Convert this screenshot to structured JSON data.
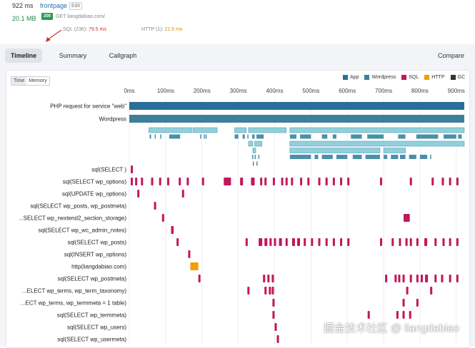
{
  "header": {
    "time": "922 ms",
    "page_link": "frontpage",
    "edit_label": "Edit",
    "memory": "20.1 MB",
    "status_badge": "200",
    "request": "GET liangdabiao.com/",
    "sql_label": "SQL (236):",
    "sql_value": "79.5 ms",
    "http_label": "HTTP (1):",
    "http_value": "21.5 ms"
  },
  "tabs": [
    {
      "label": "Timeline",
      "active": true
    },
    {
      "label": "Summary",
      "active": false
    },
    {
      "label": "Callgraph",
      "active": false
    }
  ],
  "compare_label": "Compare",
  "view_toggle": [
    "Time",
    "Memory"
  ],
  "legend": [
    {
      "label": "App",
      "color": "#2a6f97"
    },
    {
      "label": "Wordpress",
      "color": "#3e7f99"
    },
    {
      "label": "SQL",
      "color": "#c2185b"
    },
    {
      "label": "HTTP",
      "color": "#f29f05"
    },
    {
      "label": "GC",
      "color": "#333333"
    }
  ],
  "chart_data": {
    "type": "timeline",
    "x_ticks": [
      "0ms",
      "100ms",
      "200ms",
      "300ms",
      "400ms",
      "500ms",
      "600ms",
      "700ms",
      "800ms",
      "900ms"
    ],
    "x_range": [
      0,
      922
    ],
    "colors": {
      "app": "#2a6f97",
      "wp": "#3e7f99",
      "sub": "#8fd0dc",
      "subdark": "#4a90a8",
      "sql": "#c2185b",
      "http": "#f29f05"
    },
    "rows": [
      {
        "label": "PHP request for service \"web\"",
        "kind": "app",
        "spans": [
          [
            0,
            922
          ]
        ]
      },
      {
        "label": "Wordpress",
        "kind": "wp",
        "spans": [
          [
            0,
            922
          ]
        ]
      },
      {
        "label": "",
        "kind": "sub",
        "spans": [
          [
            54,
            172
          ],
          [
            175,
            242
          ],
          [
            290,
            322
          ],
          [
            328,
            432
          ],
          [
            442,
            922
          ]
        ]
      },
      {
        "label": "",
        "kind": "ticks",
        "spans": [
          [
            56,
            60
          ],
          [
            70,
            72
          ],
          [
            85,
            87
          ],
          [
            110,
            140
          ],
          [
            195,
            197
          ],
          [
            205,
            207
          ],
          [
            210,
            212
          ],
          [
            290,
            300
          ],
          [
            312,
            318
          ],
          [
            325,
            327
          ],
          [
            338,
            345
          ],
          [
            350,
            370
          ],
          [
            442,
            460
          ],
          [
            470,
            500
          ],
          [
            530,
            545
          ],
          [
            560,
            570
          ],
          [
            610,
            640
          ],
          [
            655,
            700
          ],
          [
            740,
            760
          ],
          [
            790,
            850
          ],
          [
            865,
            900
          ],
          [
            905,
            915
          ]
        ]
      },
      {
        "label": "",
        "kind": "sub",
        "spans": [
          [
            328,
            340
          ],
          [
            345,
            365
          ],
          [
            442,
            922
          ]
        ]
      },
      {
        "label": "",
        "kind": "sub",
        "spans": [
          [
            340,
            348
          ],
          [
            442,
            690
          ],
          [
            700,
            760
          ]
        ]
      },
      {
        "label": "",
        "kind": "ticks",
        "spans": [
          [
            338,
            340
          ],
          [
            345,
            347
          ],
          [
            355,
            357
          ],
          [
            442,
            500
          ],
          [
            510,
            520
          ],
          [
            530,
            560
          ],
          [
            570,
            600
          ],
          [
            615,
            640
          ],
          [
            650,
            690
          ],
          [
            700,
            710
          ],
          [
            720,
            740
          ],
          [
            745,
            760
          ],
          [
            770,
            790
          ],
          [
            800,
            820
          ],
          [
            828,
            830
          ]
        ]
      },
      {
        "label": "",
        "kind": "ticks",
        "spans": [
          [
            340,
            342
          ],
          [
            350,
            352
          ]
        ]
      },
      {
        "label": "sql(SELECT )",
        "kind": "sql",
        "spans": [
          [
            4,
            10
          ]
        ]
      },
      {
        "label": "sql(SELECT wp_options)",
        "kind": "sql",
        "spans": [
          [
            4,
            8
          ],
          [
            16,
            20
          ],
          [
            32,
            38
          ],
          [
            60,
            66
          ],
          [
            82,
            86
          ],
          [
            104,
            110
          ],
          [
            136,
            142
          ],
          [
            158,
            164
          ],
          [
            200,
            206
          ],
          [
            260,
            280
          ],
          [
            305,
            313
          ],
          [
            335,
            345
          ],
          [
            360,
            365
          ],
          [
            372,
            378
          ],
          [
            395,
            400
          ],
          [
            418,
            422
          ],
          [
            430,
            434
          ],
          [
            445,
            450
          ],
          [
            470,
            474
          ],
          [
            490,
            494
          ],
          [
            520,
            526
          ],
          [
            540,
            546
          ],
          [
            560,
            565
          ],
          [
            580,
            586
          ],
          [
            600,
            605
          ],
          [
            690,
            695
          ],
          [
            772,
            778
          ],
          [
            832,
            838
          ],
          [
            860,
            866
          ],
          [
            880,
            884
          ],
          [
            900,
            906
          ]
        ]
      },
      {
        "label": "sql(UPDATE wp_options)",
        "kind": "sql",
        "spans": [
          [
            22,
            27
          ],
          [
            145,
            150
          ]
        ]
      },
      {
        "label": "sql(SELECT wp_posts, wp_postmeta)",
        "kind": "sql",
        "spans": [
          [
            68,
            74
          ]
        ]
      },
      {
        "label": "...SELECT wp_nextend2_section_storage)",
        "kind": "sql",
        "spans": [
          [
            90,
            96
          ],
          [
            755,
            772
          ]
        ]
      },
      {
        "label": "sql(SELECT wp_wc_admin_notes)",
        "kind": "sql",
        "spans": [
          [
            115,
            122
          ]
        ]
      },
      {
        "label": "sql(SELECT wp_posts)",
        "kind": "sql",
        "spans": [
          [
            130,
            136
          ],
          [
            320,
            326
          ],
          [
            356,
            366
          ],
          [
            372,
            380
          ],
          [
            386,
            392
          ],
          [
            398,
            404
          ],
          [
            412,
            420
          ],
          [
            430,
            436
          ],
          [
            448,
            456
          ],
          [
            462,
            470
          ],
          [
            480,
            486
          ],
          [
            500,
            506
          ],
          [
            520,
            526
          ],
          [
            540,
            546
          ],
          [
            560,
            566
          ],
          [
            580,
            586
          ],
          [
            600,
            606
          ],
          [
            690,
            696
          ],
          [
            722,
            728
          ],
          [
            742,
            748
          ],
          [
            760,
            766
          ],
          [
            772,
            778
          ],
          [
            790,
            796
          ],
          [
            812,
            820
          ],
          [
            840,
            846
          ],
          [
            862,
            868
          ],
          [
            880,
            886
          ],
          [
            900,
            906
          ]
        ]
      },
      {
        "label": "sql(INSERT wp_options)",
        "kind": "sql",
        "spans": [
          [
            162,
            168
          ]
        ]
      },
      {
        "label": "http(liangdabiao.com)",
        "kind": "http",
        "spans": [
          [
            168,
            190
          ]
        ]
      },
      {
        "label": "sql(SELECT wp_postmeta)",
        "kind": "sql",
        "spans": [
          [
            190,
            196
          ],
          [
            368,
            374
          ],
          [
            380,
            386
          ],
          [
            392,
            398
          ],
          [
            704,
            710
          ],
          [
            730,
            736
          ],
          [
            740,
            746
          ],
          [
            752,
            758
          ],
          [
            772,
            778
          ],
          [
            790,
            796
          ],
          [
            802,
            808
          ],
          [
            814,
            822
          ],
          [
            840,
            846
          ],
          [
            858,
            864
          ],
          [
            880,
            886
          ],
          [
            900,
            906
          ]
        ]
      },
      {
        "label": "...ELECT wp_terms, wp_term_taxonomy)",
        "kind": "sql",
        "spans": [
          [
            325,
            330
          ],
          [
            372,
            378
          ],
          [
            384,
            390
          ],
          [
            392,
            398
          ],
          [
            762,
            768
          ],
          [
            828,
            834
          ]
        ]
      },
      {
        "label": "...ECT wp_terms, wp_termmeta = 1 table)",
        "kind": "sql",
        "spans": [
          [
            394,
            400
          ],
          [
            752,
            758
          ],
          [
            790,
            796
          ]
        ]
      },
      {
        "label": "sql(SELECT wp_termmeta)",
        "kind": "sql",
        "spans": [
          [
            394,
            400
          ],
          [
            656,
            662
          ],
          [
            735,
            741
          ],
          [
            752,
            758
          ],
          [
            770,
            776
          ]
        ]
      },
      {
        "label": "sql(SELECT wp_users)",
        "kind": "sql",
        "spans": [
          [
            400,
            406
          ]
        ]
      },
      {
        "label": "sql(SELECT wp_usermeta)",
        "kind": "sql",
        "spans": [
          [
            406,
            412
          ]
        ]
      }
    ]
  },
  "watermark": "掘金技术社区 @ liangdabiao"
}
